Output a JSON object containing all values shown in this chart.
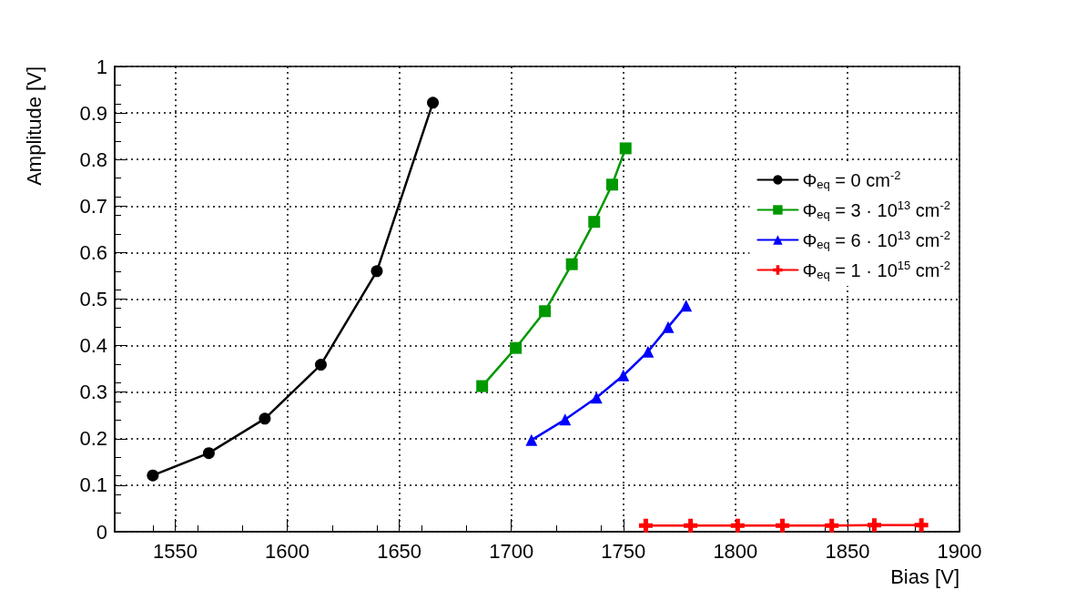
{
  "chart_data": {
    "type": "line",
    "xlabel": "Bias [V]",
    "ylabel": "Amplitude [V]",
    "xlim": [
      1523,
      1900
    ],
    "xticks": [
      1550,
      1600,
      1650,
      1700,
      1750,
      1800,
      1850,
      1900
    ],
    "ylim": [
      0,
      1
    ],
    "yticks": [
      0,
      0.1,
      0.2,
      0.3,
      0.4,
      0.5,
      0.6,
      0.7,
      0.8,
      0.9,
      1
    ],
    "grid": true,
    "legend": "right",
    "line_style": "solid",
    "series": [
      {
        "name": "Φ$_{eq}$ = 0 cm$^{-2}$",
        "color": "#000000",
        "marker": "circle",
        "x": [
          1540,
          1565,
          1590,
          1615,
          1640,
          1665
        ],
        "values": [
          0.121,
          0.169,
          0.243,
          0.359,
          0.56,
          0.922
        ]
      },
      {
        "name": "Φ$_{eq}$ = 3 · 10$^{13}$ cm$^{-2}$",
        "color": "#009900",
        "marker": "square",
        "x": [
          1687,
          1702,
          1715,
          1727,
          1737,
          1745,
          1751
        ],
        "values": [
          0.313,
          0.395,
          0.474,
          0.575,
          0.666,
          0.746,
          0.824
        ]
      },
      {
        "name": "Φ$_{eq}$ = 6 · 10$^{13}$ cm$^{-2}$",
        "color": "#0000ff",
        "marker": "triangle",
        "x": [
          1709,
          1724,
          1738,
          1750,
          1761,
          1770,
          1778
        ],
        "values": [
          0.197,
          0.241,
          0.288,
          0.336,
          0.387,
          0.44,
          0.486
        ]
      },
      {
        "name": "Φ$_{eq}$ = 1 · 10$^{15}$ cm$^{-2}$",
        "color": "#ff0000",
        "marker": "cross",
        "x": [
          1760,
          1780,
          1801,
          1821,
          1843,
          1862,
          1883
        ],
        "values": [
          0.013,
          0.013,
          0.013,
          0.013,
          0.013,
          0.014,
          0.014
        ]
      }
    ]
  }
}
